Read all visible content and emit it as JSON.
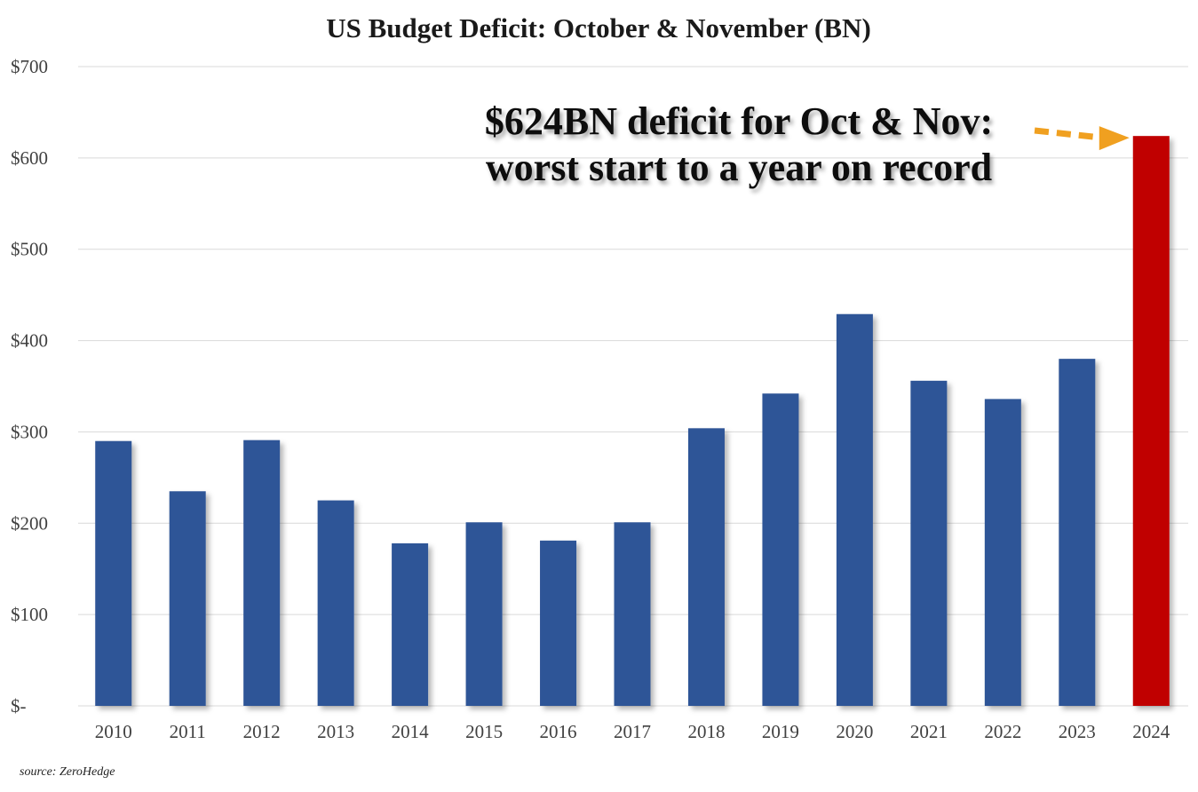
{
  "chart_data": {
    "type": "bar",
    "title": "US Budget Deficit: October & November (BN)",
    "xlabel": "",
    "ylabel": "",
    "categories": [
      "2010",
      "2011",
      "2012",
      "2013",
      "2014",
      "2015",
      "2016",
      "2017",
      "2018",
      "2019",
      "2020",
      "2021",
      "2022",
      "2023",
      "2024"
    ],
    "values": [
      290,
      235,
      291,
      225,
      178,
      201,
      181,
      201,
      304,
      342,
      429,
      356,
      336,
      380,
      624
    ],
    "ylim": [
      0,
      700
    ],
    "yticks": [
      0,
      100,
      200,
      300,
      400,
      500,
      600,
      700
    ],
    "ytick_labels": [
      "$-",
      "$100",
      "$200",
      "$300",
      "$400",
      "$500",
      "$600",
      "$700"
    ],
    "grid": true,
    "colors": {
      "default_bar": "#2f5597",
      "highlight_bar": "#c00000",
      "arrow": "#f0a020"
    },
    "highlight_category": "2024",
    "annotation": {
      "line1": "$624BN deficit for Oct & Nov:",
      "line2": "worst start to a year on record",
      "target_category": "2024"
    },
    "source": "source: ZeroHedge"
  }
}
